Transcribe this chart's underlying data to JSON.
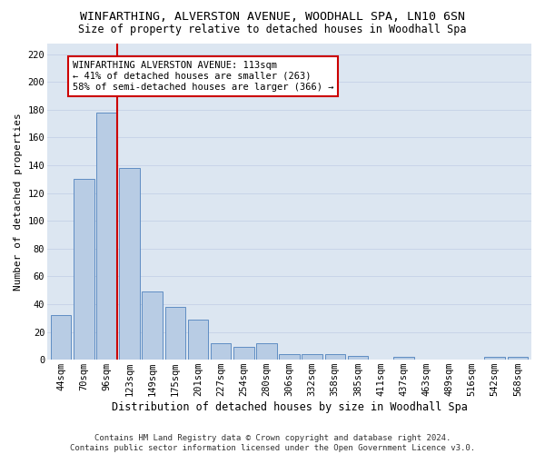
{
  "title": "WINFARTHING, ALVERSTON AVENUE, WOODHALL SPA, LN10 6SN",
  "subtitle": "Size of property relative to detached houses in Woodhall Spa",
  "xlabel": "Distribution of detached houses by size in Woodhall Spa",
  "ylabel": "Number of detached properties",
  "footer_line1": "Contains HM Land Registry data © Crown copyright and database right 2024.",
  "footer_line2": "Contains public sector information licensed under the Open Government Licence v3.0.",
  "categories": [
    "44sqm",
    "70sqm",
    "96sqm",
    "123sqm",
    "149sqm",
    "175sqm",
    "201sqm",
    "227sqm",
    "254sqm",
    "280sqm",
    "306sqm",
    "332sqm",
    "358sqm",
    "385sqm",
    "411sqm",
    "437sqm",
    "463sqm",
    "489sqm",
    "516sqm",
    "542sqm",
    "568sqm"
  ],
  "values": [
    32,
    130,
    178,
    138,
    49,
    38,
    29,
    12,
    9,
    12,
    4,
    4,
    4,
    3,
    0,
    2,
    0,
    0,
    0,
    2,
    2
  ],
  "bar_color": "#b8cce4",
  "bar_edge_color": "#4f81bd",
  "grid_color": "#c8d4e8",
  "background_color": "#dce6f1",
  "vline_x_index": 2,
  "vline_color": "#cc0000",
  "annotation_text": "WINFARTHING ALVERSTON AVENUE: 113sqm\n← 41% of detached houses are smaller (263)\n58% of semi-detached houses are larger (366) →",
  "annotation_box_color": "#cc0000",
  "ylim": [
    0,
    228
  ],
  "yticks": [
    0,
    20,
    40,
    60,
    80,
    100,
    120,
    140,
    160,
    180,
    200,
    220
  ],
  "title_fontsize": 9.5,
  "subtitle_fontsize": 8.5,
  "xlabel_fontsize": 8.5,
  "ylabel_fontsize": 8,
  "tick_fontsize": 7.5,
  "annotation_fontsize": 7.5,
  "footer_fontsize": 6.5
}
